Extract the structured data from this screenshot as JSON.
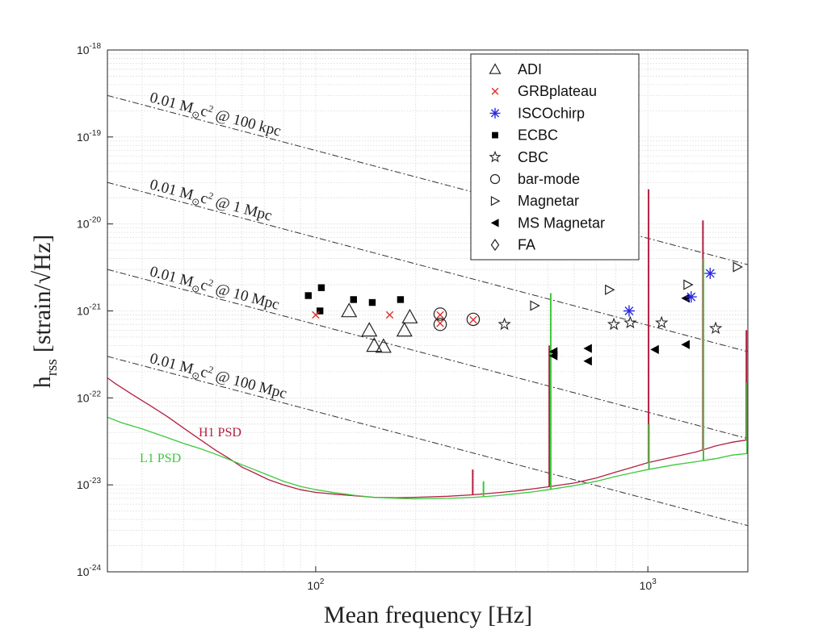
{
  "colors": {
    "h1": "#b22040",
    "l1": "#3cc83c",
    "grb": "#e0302a",
    "isco": "#2a2ae0",
    "grid": "#d8d8d8"
  },
  "chart_data": {
    "type": "scatter",
    "xscale": "log",
    "yscale": "log",
    "xlim": [
      23.6,
      2000
    ],
    "ylim": [
      1e-24,
      1e-18
    ],
    "grid": true,
    "legend_position": "top-right",
    "xlabel": "Mean frequency [Hz]",
    "ylabel_main": "h",
    "ylabel_sub": "rss",
    "ylabel_unit": "[strain/√Hz]",
    "x_ticks": [
      {
        "value": 100,
        "base": "10",
        "exp": "2"
      },
      {
        "value": 1000,
        "base": "10",
        "exp": "3"
      }
    ],
    "y_ticks": [
      {
        "value": 1e-18,
        "base": "10",
        "exp": "-18"
      },
      {
        "value": 1e-19,
        "base": "10",
        "exp": "-19"
      },
      {
        "value": 1e-20,
        "base": "10",
        "exp": "-20"
      },
      {
        "value": 1e-21,
        "base": "10",
        "exp": "-21"
      },
      {
        "value": 1e-22,
        "base": "10",
        "exp": "-22"
      },
      {
        "value": 1e-23,
        "base": "10",
        "exp": "-23"
      },
      {
        "value": 1e-24,
        "base": "10",
        "exp": "-24"
      }
    ],
    "reference_lines": [
      {
        "label_pre": "0.01 M",
        "label_sub": "⊙",
        "label_mid": "c",
        "label_sup": "2",
        "label_post": " @ 100 kpc",
        "points": [
          [
            23.6,
            3e-19
          ],
          [
            2000,
            3.4e-21
          ]
        ]
      },
      {
        "label_pre": "0.01 M",
        "label_sub": "⊙",
        "label_mid": "c",
        "label_sup": "2",
        "label_post": " @ 1 Mpc",
        "points": [
          [
            23.6,
            3e-20
          ],
          [
            2000,
            3.4e-22
          ]
        ]
      },
      {
        "label_pre": "0.01 M",
        "label_sub": "⊙",
        "label_mid": "c",
        "label_sup": "2",
        "label_post": " @ 10 Mpc",
        "points": [
          [
            23.6,
            3e-21
          ],
          [
            2000,
            3.4e-23
          ]
        ]
      },
      {
        "label_pre": "0.01 M",
        "label_sub": "⊙",
        "label_mid": "c",
        "label_sup": "2",
        "label_post": " @ 100 Mpc",
        "points": [
          [
            23.6,
            3e-22
          ],
          [
            2000,
            3.4e-24
          ]
        ]
      }
    ],
    "psd_curves": [
      {
        "name": "H1 PSD",
        "color_key": "h1",
        "points": [
          [
            23.6,
            1.7e-22
          ],
          [
            25,
            1.45e-22
          ],
          [
            28,
            1.1e-22
          ],
          [
            32,
            8e-23
          ],
          [
            36,
            6e-23
          ],
          [
            40,
            4.5e-23
          ],
          [
            45,
            3.3e-23
          ],
          [
            50,
            2.5e-23
          ],
          [
            55,
            2e-23
          ],
          [
            60,
            1.6e-23
          ],
          [
            66,
            1.35e-23
          ],
          [
            72,
            1.15e-23
          ],
          [
            80,
            1e-23
          ],
          [
            90,
            8.8e-24
          ],
          [
            100,
            8.2e-24
          ],
          [
            115,
            7.8e-24
          ],
          [
            130,
            7.5e-24
          ],
          [
            150,
            7.2e-24
          ],
          [
            175,
            7.1e-24
          ],
          [
            200,
            7.2e-24
          ],
          [
            250,
            7.4e-24
          ],
          [
            300,
            7.7e-24
          ],
          [
            350,
            8.1e-24
          ],
          [
            400,
            8.5e-24
          ],
          [
            450,
            9e-24
          ],
          [
            500,
            9.5e-24
          ],
          [
            600,
            1.05e-23
          ],
          [
            700,
            1.2e-23
          ],
          [
            800,
            1.4e-23
          ],
          [
            900,
            1.6e-23
          ],
          [
            1000,
            1.8e-23
          ],
          [
            1200,
            2.1e-23
          ],
          [
            1400,
            2.4e-23
          ],
          [
            1600,
            2.8e-23
          ],
          [
            1800,
            3.1e-23
          ],
          [
            2000,
            3.3e-23
          ]
        ]
      },
      {
        "name": "L1 PSD",
        "color_key": "l1",
        "points": [
          [
            23.6,
            6e-23
          ],
          [
            26,
            5.2e-23
          ],
          [
            30,
            4.4e-23
          ],
          [
            35,
            3.6e-23
          ],
          [
            40,
            3e-23
          ],
          [
            45,
            2.6e-23
          ],
          [
            50,
            2.25e-23
          ],
          [
            55,
            1.95e-23
          ],
          [
            60,
            1.7e-23
          ],
          [
            70,
            1.35e-23
          ],
          [
            80,
            1.1e-23
          ],
          [
            90,
            9.6e-24
          ],
          [
            100,
            8.8e-24
          ],
          [
            115,
            8.1e-24
          ],
          [
            130,
            7.6e-24
          ],
          [
            150,
            7.2e-24
          ],
          [
            175,
            7e-24
          ],
          [
            200,
            6.9e-24
          ],
          [
            250,
            7e-24
          ],
          [
            300,
            7.2e-24
          ],
          [
            350,
            7.5e-24
          ],
          [
            400,
            7.9e-24
          ],
          [
            450,
            8.3e-24
          ],
          [
            500,
            8.8e-24
          ],
          [
            600,
            9.8e-24
          ],
          [
            700,
            1.1e-23
          ],
          [
            800,
            1.25e-23
          ],
          [
            900,
            1.38e-23
          ],
          [
            1000,
            1.5e-23
          ],
          [
            1200,
            1.7e-23
          ],
          [
            1400,
            1.85e-23
          ],
          [
            1600,
            2e-23
          ],
          [
            1800,
            2.2e-23
          ],
          [
            2000,
            2.3e-23
          ]
        ]
      }
    ],
    "psd_lines": [
      {
        "curve": "H1 PSD",
        "f": 297,
        "peak": 1.5e-23
      },
      {
        "curve": "H1 PSD",
        "f": 505,
        "peak": 4e-22
      },
      {
        "curve": "H1 PSD",
        "f": 1005,
        "peak": 2.5e-20
      },
      {
        "curve": "H1 PSD",
        "f": 1465,
        "peak": 1.1e-20
      },
      {
        "curve": "H1 PSD",
        "f": 1980,
        "peak": 6e-22
      },
      {
        "curve": "L1 PSD",
        "f": 320,
        "peak": 1.1e-23
      },
      {
        "curve": "L1 PSD",
        "f": 510,
        "peak": 1.6e-21
      },
      {
        "curve": "L1 PSD",
        "f": 1008,
        "peak": 5e-23
      },
      {
        "curve": "L1 PSD",
        "f": 1470,
        "peak": 4e-21
      },
      {
        "curve": "L1 PSD",
        "f": 1990,
        "peak": 1.5e-22
      }
    ],
    "series": [
      {
        "name": "ADI",
        "marker": "triangle-open",
        "color": "#222222",
        "points": [
          [
            126,
            1e-21
          ],
          [
            145,
            6e-22
          ],
          [
            150,
            4e-22
          ],
          [
            160,
            3.9e-22
          ],
          [
            185,
            6e-22
          ],
          [
            192,
            8.5e-22
          ]
        ]
      },
      {
        "name": "GRBplateau",
        "marker": "x",
        "color_key": "grb",
        "points": [
          [
            100,
            9e-22
          ],
          [
            167,
            9e-22
          ],
          [
            237,
            9e-22
          ],
          [
            237,
            7.2e-22
          ],
          [
            298,
            7.9e-22
          ]
        ]
      },
      {
        "name": "ISCOchirp",
        "marker": "asterisk",
        "color_key": "isco",
        "points": [
          [
            878,
            1e-21
          ],
          [
            1350,
            1.45e-21
          ],
          [
            1540,
            2.7e-21
          ]
        ]
      },
      {
        "name": "ECBC",
        "marker": "square-filled",
        "color": "#000000",
        "points": [
          [
            95,
            1.5e-21
          ],
          [
            104,
            1.85e-21
          ],
          [
            103,
            1e-21
          ],
          [
            130,
            1.35e-21
          ],
          [
            148,
            1.25e-21
          ],
          [
            180,
            1.35e-21
          ]
        ]
      },
      {
        "name": "CBC",
        "marker": "star-open",
        "color": "#222222",
        "points": [
          [
            370,
            7e-22
          ],
          [
            790,
            7e-22
          ],
          [
            885,
            7.3e-22
          ],
          [
            1100,
            7.3e-22
          ],
          [
            1600,
            6.3e-22
          ]
        ]
      },
      {
        "name": "bar-mode",
        "marker": "circle-open",
        "color": "#222222",
        "points": [
          [
            237,
            9.2e-22
          ],
          [
            237,
            7e-22
          ],
          [
            298,
            8e-22
          ]
        ]
      },
      {
        "name": "Magnetar",
        "marker": "triangle-right-open",
        "color": "#222222",
        "points": [
          [
            456,
            1.15e-21
          ],
          [
            766,
            1.75e-21
          ],
          [
            1320,
            2e-21
          ],
          [
            1860,
            3.2e-21
          ]
        ]
      },
      {
        "name": "MS Magnetar",
        "marker": "triangle-left-filled",
        "color": "#000000",
        "points": [
          [
            520,
            3.4e-22
          ],
          [
            520,
            3.05e-22
          ],
          [
            660,
            3.7e-22
          ],
          [
            660,
            2.65e-22
          ],
          [
            1050,
            3.6e-22
          ],
          [
            1300,
            4.1e-22
          ],
          [
            1300,
            1.4e-21
          ]
        ]
      },
      {
        "name": "FA",
        "marker": "diamond-open",
        "color": "#222222",
        "points": []
      }
    ]
  }
}
